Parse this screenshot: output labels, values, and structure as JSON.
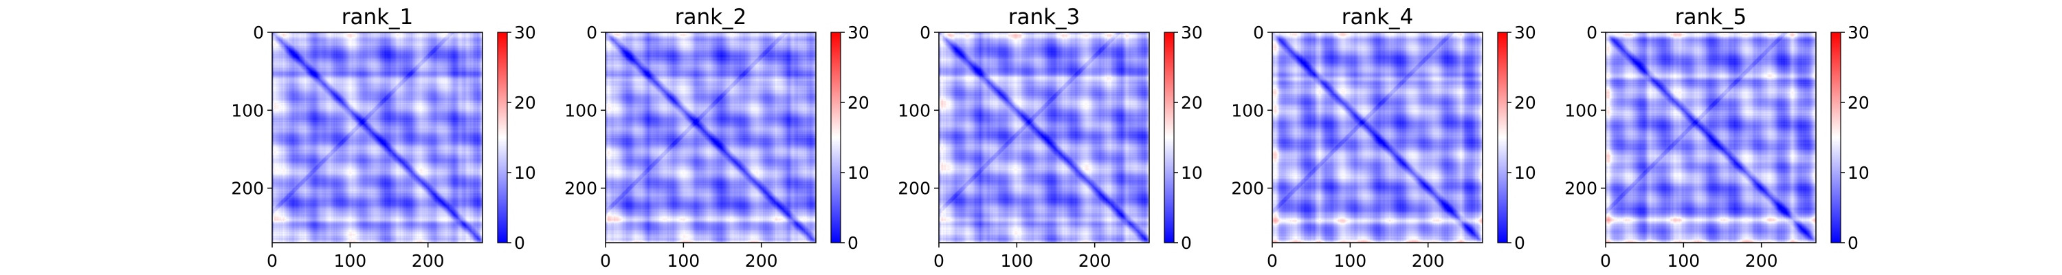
{
  "chart_data": {
    "type": "heatmap",
    "colormap": "bwr",
    "colors": {
      "low": "#0000ff",
      "mid": "#ffffff",
      "high": "#ff0000"
    },
    "vmin": 0,
    "vmax": 30,
    "colorbar_ticks": [
      "0",
      "10",
      "20",
      "30"
    ],
    "matrix_size": 270,
    "xticks": [
      "0",
      "100",
      "200"
    ],
    "yticks": [
      "0",
      "100",
      "200"
    ],
    "panels": [
      {
        "title": "rank_1",
        "bright_rows": [
          3,
          60,
          240
        ],
        "seed": 11
      },
      {
        "title": "rank_2",
        "bright_rows": [
          3,
          60,
          240
        ],
        "seed": 23
      },
      {
        "title": "rank_3",
        "bright_rows": [
          3,
          58,
          240
        ],
        "seed": 37
      },
      {
        "title": "rank_4",
        "bright_rows": [
          3,
          60,
          242
        ],
        "seed": 41
      },
      {
        "title": "rank_5",
        "bright_rows": [
          3,
          56,
          240
        ],
        "seed": 53
      }
    ]
  }
}
